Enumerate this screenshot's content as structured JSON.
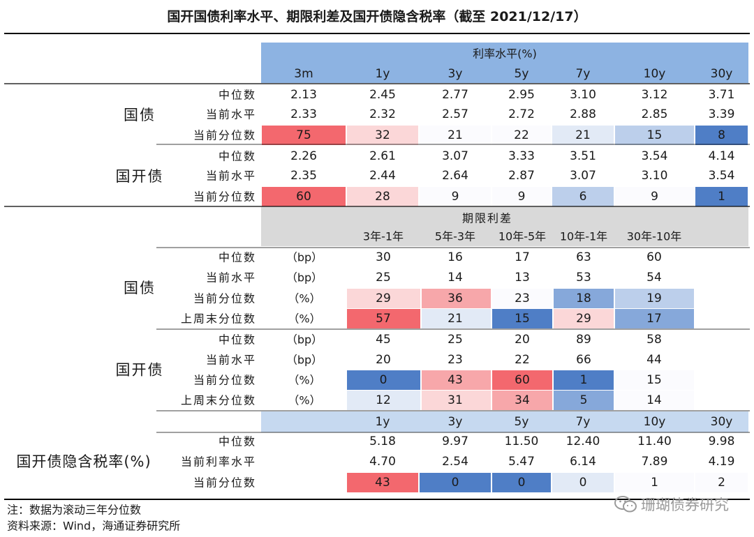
{
  "chart_data": {
    "type": "table",
    "title": "国开国债利率水平、期限利差及国开债隐含税率（截至 2021/12/17）",
    "colors": {
      "red_strong": "#f3686e",
      "red_mid": "#f7a7aa",
      "red_light": "#fbd7d8",
      "blue_strong": "#4f7ec6",
      "blue_mid": "#86a8da",
      "blue_light": "#bccfeb",
      "blue_pale": "#e2eaf6",
      "white_tint": "#fbfbfe",
      "header_blue": "#8db3e2",
      "header_light": "#c6d9f0",
      "header_gray": "#d9d9d9",
      "rule": "#000000"
    },
    "rate_section": {
      "header": "利率水平(%)",
      "columns": [
        "3m",
        "1y",
        "3y",
        "5y",
        "7y",
        "10y",
        "30y"
      ],
      "groups": [
        {
          "name": "国债",
          "rows": [
            {
              "label": "中位数",
              "values": [
                "2.13",
                "2.45",
                "2.77",
                "2.95",
                "3.10",
                "3.12",
                "3.71"
              ],
              "colors": []
            },
            {
              "label": "当前水平",
              "values": [
                "2.33",
                "2.32",
                "2.57",
                "2.72",
                "2.88",
                "2.85",
                "3.39"
              ],
              "colors": []
            },
            {
              "label": "当前分位数",
              "values": [
                "75",
                "32",
                "21",
                "22",
                "21",
                "15",
                "8"
              ],
              "colors": [
                "red_strong",
                "red_light",
                "white_tint",
                "white_tint",
                "blue_pale",
                "blue_light",
                "blue_strong"
              ]
            }
          ]
        },
        {
          "name": "国开债",
          "rows": [
            {
              "label": "中位数",
              "values": [
                "2.26",
                "2.61",
                "3.07",
                "3.33",
                "3.51",
                "3.54",
                "4.14"
              ],
              "colors": []
            },
            {
              "label": "当前水平",
              "values": [
                "2.35",
                "2.44",
                "2.64",
                "2.87",
                "3.07",
                "3.10",
                "3.54"
              ],
              "colors": []
            },
            {
              "label": "当前分位数",
              "values": [
                "60",
                "28",
                "9",
                "9",
                "6",
                "9",
                "1"
              ],
              "colors": [
                "red_strong",
                "red_light",
                "white_tint",
                "white_tint",
                "blue_light",
                "white_tint",
                "blue_strong"
              ]
            }
          ]
        }
      ]
    },
    "spread_section": {
      "header": "期限利差",
      "columns": [
        "3年-1年",
        "5年-3年",
        "10年-5年",
        "10年-1年",
        "30年-10年"
      ],
      "groups": [
        {
          "name": "国债",
          "rows": [
            {
              "label": "中位数",
              "unit": "（bp）",
              "values": [
                "30",
                "16",
                "17",
                "63",
                "60"
              ],
              "colors": []
            },
            {
              "label": "当前水平",
              "unit": "（bp）",
              "values": [
                "25",
                "14",
                "13",
                "53",
                "54"
              ],
              "colors": []
            },
            {
              "label": "当前分位数",
              "unit": "（%）",
              "values": [
                "29",
                "36",
                "23",
                "18",
                "19"
              ],
              "colors": [
                "red_light",
                "red_mid",
                "white_tint",
                "blue_mid",
                "blue_light"
              ]
            },
            {
              "label": "上周末分位数",
              "unit": "（%）",
              "values": [
                "57",
                "21",
                "15",
                "29",
                "17"
              ],
              "colors": [
                "red_strong",
                "blue_pale",
                "blue_strong",
                "red_light",
                "blue_mid"
              ]
            }
          ]
        },
        {
          "name": "国开债",
          "rows": [
            {
              "label": "中位数",
              "unit": "（bp）",
              "values": [
                "45",
                "25",
                "20",
                "89",
                "58"
              ],
              "colors": []
            },
            {
              "label": "当前水平",
              "unit": "（bp）",
              "values": [
                "20",
                "23",
                "22",
                "66",
                "44"
              ],
              "colors": []
            },
            {
              "label": "当前分位数",
              "unit": "（%）",
              "values": [
                "0",
                "43",
                "60",
                "1",
                "15"
              ],
              "colors": [
                "blue_strong",
                "red_mid",
                "red_strong",
                "blue_strong",
                "white_tint"
              ]
            },
            {
              "label": "上周末分位数",
              "unit": "（%）",
              "values": [
                "12",
                "31",
                "34",
                "5",
                "14"
              ],
              "colors": [
                "blue_pale",
                "red_light",
                "red_mid",
                "blue_mid",
                "white_tint"
              ]
            }
          ]
        }
      ]
    },
    "tax_section": {
      "name": "国开债隐含税率(%)",
      "columns": [
        "1y",
        "3y",
        "5y",
        "7y",
        "10y",
        "30y"
      ],
      "rows": [
        {
          "label": "中位数",
          "values": [
            "5.18",
            "9.97",
            "11.50",
            "12.40",
            "11.40",
            "9.98"
          ],
          "colors": []
        },
        {
          "label": "当前利率水平",
          "values": [
            "4.70",
            "2.54",
            "5.47",
            "6.14",
            "7.89",
            "4.19"
          ],
          "colors": []
        },
        {
          "label": "当前分位数",
          "values": [
            "43",
            "0",
            "0",
            "0",
            "1",
            "2"
          ],
          "colors": [
            "red_strong",
            "blue_strong",
            "blue_strong",
            "blue_pale",
            "white_tint",
            "white_tint"
          ]
        }
      ]
    },
    "notes": [
      "注：数据为滚动三年分位数",
      "资料来源：Wind，海通证券研究所"
    ]
  },
  "watermark": "珊瑚债券研究",
  "watermark_icon": "wechat-icon"
}
